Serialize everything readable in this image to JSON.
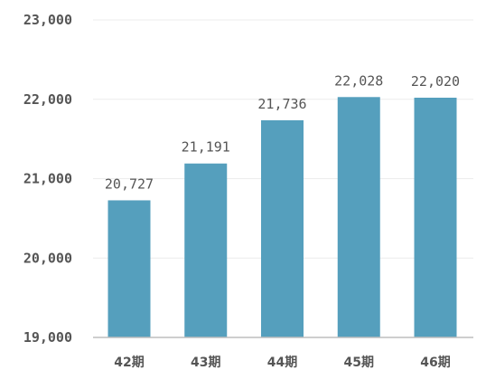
{
  "chart_data": {
    "type": "bar",
    "categories": [
      "42期",
      "43期",
      "44期",
      "45期",
      "46期"
    ],
    "values": [
      20727,
      21191,
      21736,
      22028,
      22020
    ],
    "data_labels": [
      "20,727",
      "21,191",
      "21,736",
      "22,028",
      "22,020"
    ],
    "y_ticks": [
      19000,
      20000,
      21000,
      22000,
      23000
    ],
    "y_tick_labels": [
      "19,000",
      "20,000",
      "21,000",
      "22,000",
      "23,000"
    ],
    "ylim": [
      19000,
      23000
    ],
    "title": "",
    "xlabel": "",
    "ylabel": "",
    "grid": true,
    "legend": "none",
    "colors": {
      "bar": "#559fbd",
      "grid": "#ececec",
      "axis": "#bdbdbd",
      "text": "#555555"
    }
  }
}
